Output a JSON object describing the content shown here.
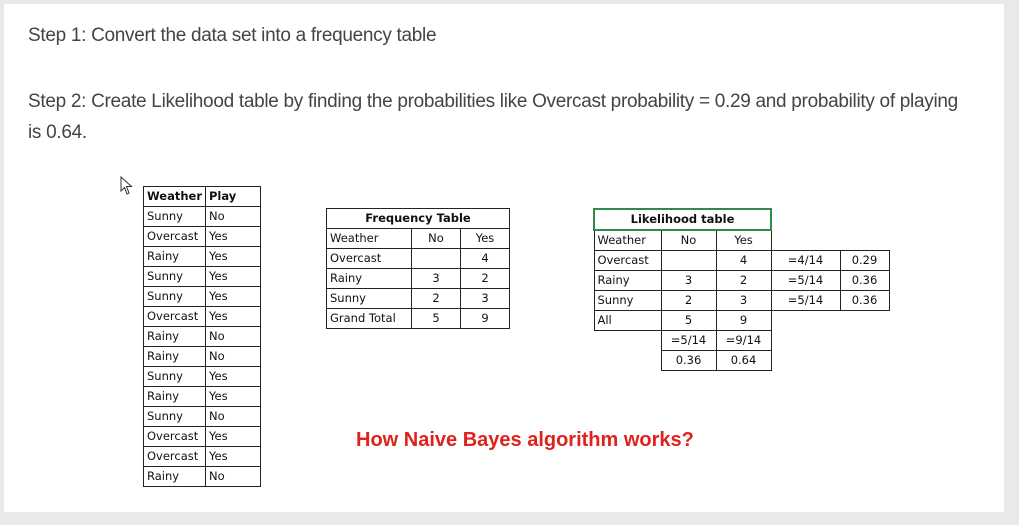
{
  "step1": "Step 1: Convert the data set into a frequency table",
  "step2": "Step 2: Create Likelihood table by finding the probabilities like Overcast probability = 0.29 and probability of playing is 0.64.",
  "weather_table": {
    "headers": [
      "Weather",
      "Play"
    ],
    "rows": [
      [
        "Sunny",
        "No"
      ],
      [
        "Overcast",
        "Yes"
      ],
      [
        "Rainy",
        "Yes"
      ],
      [
        "Sunny",
        "Yes"
      ],
      [
        "Sunny",
        "Yes"
      ],
      [
        "Overcast",
        "Yes"
      ],
      [
        "Rainy",
        "No"
      ],
      [
        "Rainy",
        "No"
      ],
      [
        "Sunny",
        "Yes"
      ],
      [
        "Rainy",
        "Yes"
      ],
      [
        "Sunny",
        "No"
      ],
      [
        "Overcast",
        "Yes"
      ],
      [
        "Overcast",
        "Yes"
      ],
      [
        "Rainy",
        "No"
      ]
    ]
  },
  "frequency_table": {
    "title": "Frequency Table",
    "headers": [
      "Weather",
      "No",
      "Yes"
    ],
    "rows": [
      [
        "Overcast",
        "",
        "4"
      ],
      [
        "Rainy",
        "3",
        "2"
      ],
      [
        "Sunny",
        "2",
        "3"
      ],
      [
        "Grand Total",
        "5",
        "9"
      ]
    ]
  },
  "likelihood_table": {
    "title": "Likelihood table",
    "headers": [
      "Weather",
      "No",
      "Yes"
    ],
    "rows": [
      [
        "Overcast",
        "",
        "4",
        "=4/14",
        "0.29"
      ],
      [
        "Rainy",
        "3",
        "2",
        "=5/14",
        "0.36"
      ],
      [
        "Sunny",
        "2",
        "3",
        "=5/14",
        "0.36"
      ],
      [
        "All",
        "5",
        "9",
        "",
        ""
      ]
    ],
    "fraction_row": [
      "=5/14",
      "=9/14"
    ],
    "prob_row": [
      "0.36",
      "0.64"
    ]
  },
  "caption": "How Naive Bayes algorithm works?"
}
